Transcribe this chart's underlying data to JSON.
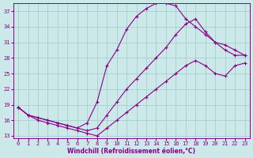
{
  "xlabel": "Windchill (Refroidissement éolien,°C)",
  "bg_color": "#cce8e8",
  "line_color": "#880088",
  "grid_color": "#99cccc",
  "xlim": [
    -0.5,
    23.5
  ],
  "ylim": [
    12.5,
    38.5
  ],
  "yticks": [
    13,
    16,
    19,
    22,
    25,
    28,
    31,
    34,
    37
  ],
  "xticks": [
    0,
    1,
    2,
    3,
    4,
    5,
    6,
    7,
    8,
    9,
    10,
    11,
    12,
    13,
    14,
    15,
    16,
    17,
    18,
    19,
    20,
    21,
    22,
    23
  ],
  "curve_upper_x": [
    0,
    1,
    2,
    3,
    4,
    5,
    6,
    7,
    8,
    9,
    10,
    11,
    12,
    13,
    14,
    15,
    16,
    17,
    18,
    19,
    20,
    21,
    22,
    23
  ],
  "curve_upper_y": [
    18.5,
    17.0,
    16.5,
    16.0,
    15.5,
    15.0,
    14.5,
    15.5,
    19.5,
    26.5,
    29.5,
    33.5,
    36.0,
    37.5,
    38.5,
    38.5,
    38.0,
    35.5,
    34.0,
    32.5,
    31.0,
    29.5,
    28.5,
    28.5
  ],
  "curve_mid_x": [
    0,
    1,
    2,
    3,
    4,
    5,
    6,
    7,
    8,
    9,
    10,
    11,
    12,
    13,
    14,
    15,
    16,
    17,
    18,
    19,
    20,
    21,
    22,
    23
  ],
  "curve_mid_y": [
    18.5,
    17.0,
    16.5,
    16.0,
    15.5,
    15.0,
    14.5,
    14.0,
    14.5,
    17.0,
    19.5,
    22.0,
    24.0,
    26.0,
    28.0,
    30.0,
    32.5,
    34.5,
    35.5,
    33.0,
    31.0,
    30.5,
    29.5,
    28.5
  ],
  "curve_lower_x": [
    0,
    1,
    2,
    3,
    4,
    5,
    6,
    7,
    8,
    9,
    10,
    11,
    12,
    13,
    14,
    15,
    16,
    17,
    18,
    19,
    20,
    21,
    22,
    23
  ],
  "curve_lower_y": [
    18.5,
    17.0,
    16.0,
    15.5,
    15.0,
    14.5,
    14.0,
    13.5,
    13.0,
    14.5,
    16.0,
    17.5,
    19.0,
    20.5,
    22.0,
    23.5,
    25.0,
    26.5,
    27.5,
    26.5,
    25.0,
    24.5,
    26.5,
    27.0
  ]
}
